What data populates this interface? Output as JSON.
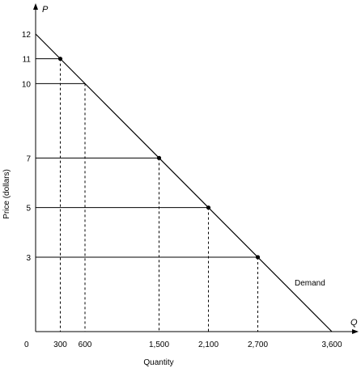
{
  "chart_data": {
    "type": "line",
    "title": "",
    "xlabel": "Quantity",
    "ylabel": "Price (dollars)",
    "x_axis_letter": "Q",
    "y_axis_letter": "P",
    "origin_label": "0",
    "xlim": [
      0,
      3600
    ],
    "ylim": [
      0,
      12
    ],
    "x_ticks": [
      {
        "value": 300,
        "label": "300"
      },
      {
        "value": 600,
        "label": "600"
      },
      {
        "value": 1500,
        "label": "1,500"
      },
      {
        "value": 2100,
        "label": "2,100"
      },
      {
        "value": 2700,
        "label": "2,700"
      },
      {
        "value": 3600,
        "label": "3,600"
      }
    ],
    "y_ticks": [
      {
        "value": 12,
        "label": "12"
      },
      {
        "value": 11,
        "label": "11"
      },
      {
        "value": 10,
        "label": "10"
      },
      {
        "value": 7,
        "label": "7"
      },
      {
        "value": 5,
        "label": "5"
      },
      {
        "value": 3,
        "label": "3"
      }
    ],
    "series": [
      {
        "name": "Demand",
        "x": [
          0,
          3600
        ],
        "y": [
          12,
          0
        ],
        "color": "#000000"
      }
    ],
    "reference_points": [
      {
        "x": 300,
        "y": 11,
        "marked": true
      },
      {
        "x": 600,
        "y": 10,
        "marked": false
      },
      {
        "x": 1500,
        "y": 7,
        "marked": true
      },
      {
        "x": 2100,
        "y": 5,
        "marked": true
      },
      {
        "x": 2700,
        "y": 3,
        "marked": true
      }
    ],
    "grid": false,
    "legend": "none"
  }
}
